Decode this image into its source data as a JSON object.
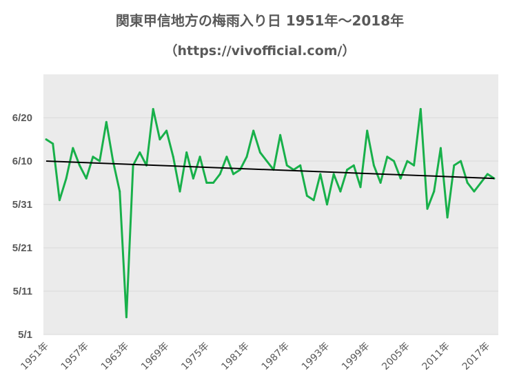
{
  "chart_data": {
    "type": "line",
    "title": "関東甲信地方の梅雨入り日 1951年～2018年",
    "subtitle": "（https://vivofficial.com/）",
    "xlabel": "",
    "ylabel": "",
    "x_start_year": 1951,
    "x_end_year": 2018,
    "y_ticks": [
      "6/20",
      "6/10",
      "5/31",
      "5/21",
      "5/11",
      "5/1"
    ],
    "ylim": [
      "5/1",
      "6/30"
    ],
    "x_tick_labels": [
      "1951年",
      "1957年",
      "1963年",
      "1969年",
      "1975年",
      "1981年",
      "1987年",
      "1993年",
      "1999年",
      "2005年",
      "2011年",
      "2017年"
    ],
    "grid": true,
    "legend": "none",
    "series": [
      {
        "color": "#18b04a",
        "x": [
          1951,
          1952,
          1953,
          1954,
          1955,
          1956,
          1957,
          1958,
          1959,
          1960,
          1961,
          1962,
          1963,
          1964,
          1965,
          1966,
          1967,
          1968,
          1969,
          1970,
          1971,
          1972,
          1973,
          1974,
          1975,
          1976,
          1977,
          1978,
          1979,
          1980,
          1981,
          1982,
          1983,
          1984,
          1985,
          1986,
          1987,
          1988,
          1989,
          1990,
          1991,
          1992,
          1993,
          1994,
          1995,
          1996,
          1997,
          1998,
          1999,
          2000,
          2001,
          2002,
          2003,
          2004,
          2005,
          2006,
          2007,
          2008,
          2009,
          2010,
          2011,
          2012,
          2013,
          2014,
          2015,
          2016,
          2017,
          2018
        ],
        "values": [
          "6/15",
          "6/14",
          "6/1",
          "6/6",
          "6/13",
          "6/9",
          "6/6",
          "6/11",
          "6/10",
          "6/19",
          "6/10",
          "6/3",
          "5/5",
          "6/9",
          "6/12",
          "6/9",
          "6/22",
          "6/15",
          "6/17",
          "6/11",
          "6/3",
          "6/12",
          "6/6",
          "6/11",
          "6/5",
          "6/5",
          "6/7",
          "6/11",
          "6/7",
          "6/8",
          "6/11",
          "6/17",
          "6/12",
          "6/10",
          "6/8",
          "6/16",
          "6/9",
          "6/8",
          "6/9",
          "6/2",
          "6/1",
          "6/7",
          "5/31",
          "6/7",
          "6/3",
          "6/8",
          "6/9",
          "6/4",
          "6/17",
          "6/9",
          "6/5",
          "6/11",
          "6/10",
          "6/6",
          "6/10",
          "6/9",
          "6/22",
          "5/30",
          "6/3",
          "6/13",
          "5/28",
          "6/9",
          "6/10",
          "6/5",
          "6/3",
          "6/5",
          "6/7",
          "6/6"
        ]
      },
      {
        "type": "trendline",
        "color": "#000000",
        "start": {
          "x": 1951,
          "y": "6/10"
        },
        "end": {
          "x": 2018,
          "y": "6/6"
        }
      }
    ]
  }
}
